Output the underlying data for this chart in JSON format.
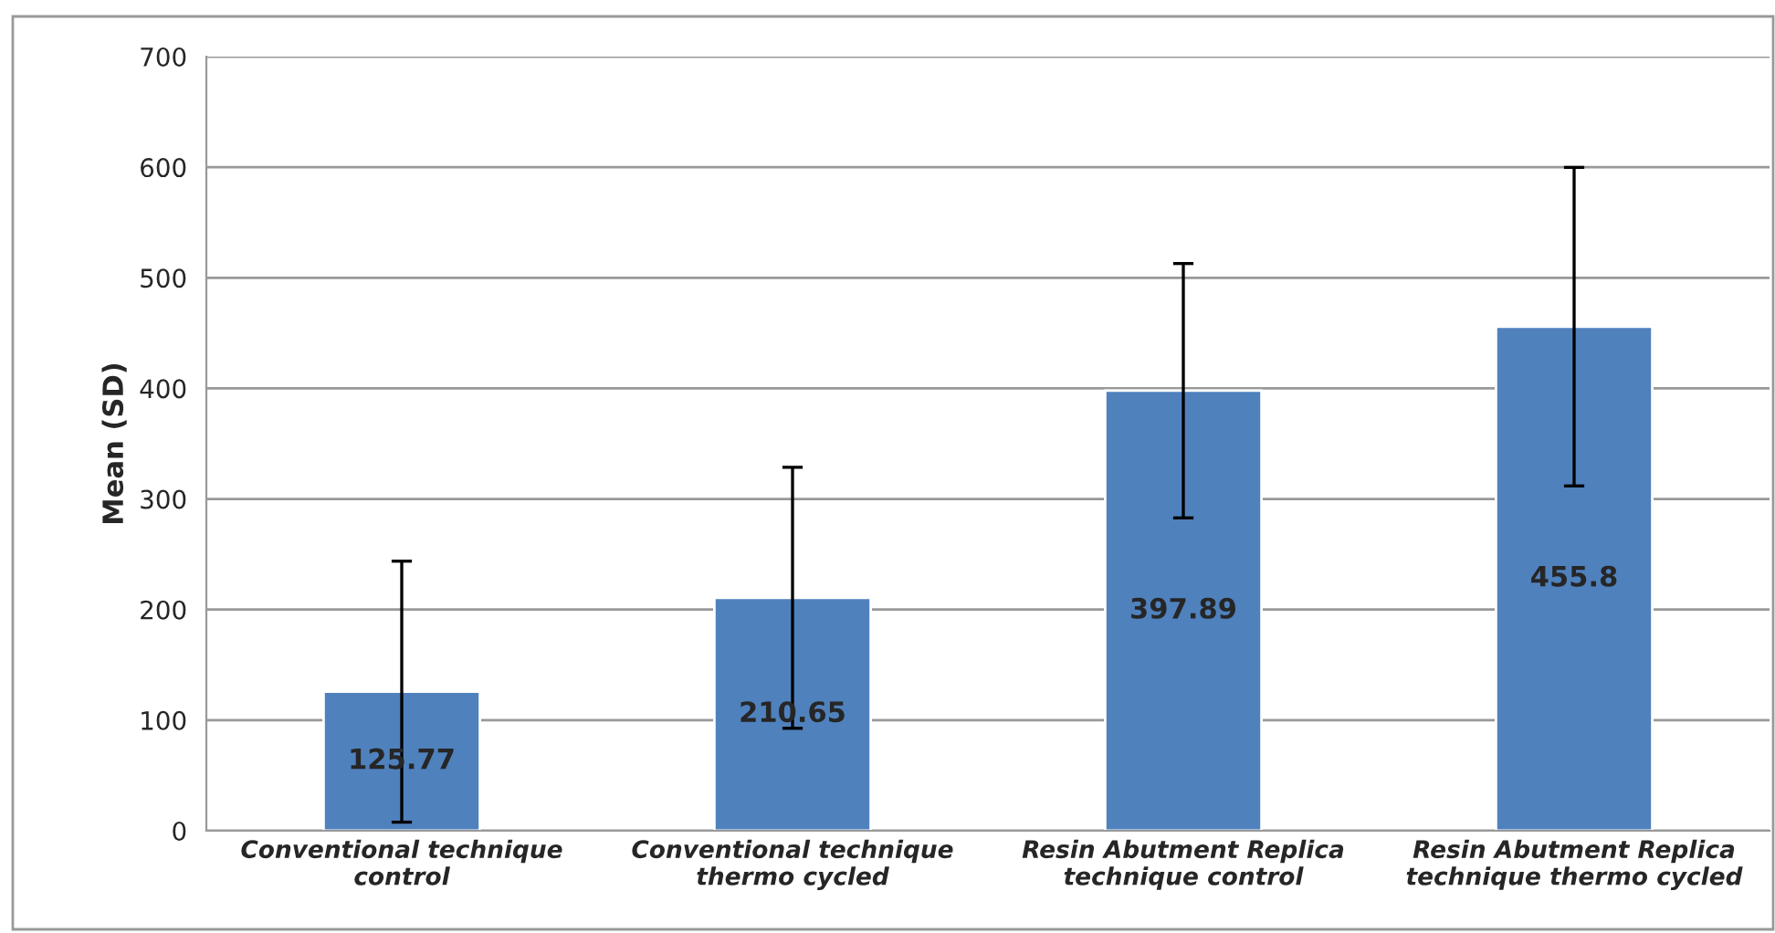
{
  "chart_data": {
    "type": "bar",
    "ylabel": "Mean (SD)",
    "categories": [
      "Conventional technique\ncontrol",
      "Conventional technique\nthermo cycled",
      "Resin Abutment Replica\ntechnique control",
      "Resin Abutment Replica\ntechnique thermo cycled"
    ],
    "values": [
      125.77,
      210.65,
      397.89,
      455.8
    ],
    "errors": [
      118,
      118,
      115,
      144
    ],
    "color": "#4f81bd",
    "data_labels": true,
    "ylim": [
      0,
      700
    ],
    "yticks": [
      0,
      100,
      200,
      300,
      400,
      500,
      600,
      700
    ],
    "grid": "y",
    "legend": false
  }
}
